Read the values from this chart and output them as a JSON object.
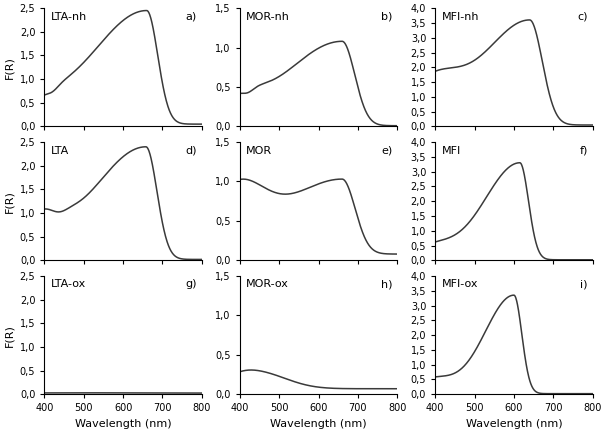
{
  "subplots": [
    {
      "label": "LTA-nh",
      "panel": "a)",
      "ylim": [
        0,
        2.5
      ],
      "yticks": [
        0.0,
        0.5,
        1.0,
        1.5,
        2.0,
        2.5
      ],
      "curve": "lta_nh"
    },
    {
      "label": "MOR-nh",
      "panel": "b)",
      "ylim": [
        0,
        1.5
      ],
      "yticks": [
        0.0,
        0.5,
        1.0,
        1.5
      ],
      "curve": "mor_nh"
    },
    {
      "label": "MFI-nh",
      "panel": "c)",
      "ylim": [
        0,
        4.0
      ],
      "yticks": [
        0.0,
        0.5,
        1.0,
        1.5,
        2.0,
        2.5,
        3.0,
        3.5,
        4.0
      ],
      "curve": "mfi_nh"
    },
    {
      "label": "LTA",
      "panel": "d)",
      "ylim": [
        0,
        2.5
      ],
      "yticks": [
        0.0,
        0.5,
        1.0,
        1.5,
        2.0,
        2.5
      ],
      "curve": "lta"
    },
    {
      "label": "MOR",
      "panel": "e)",
      "ylim": [
        0,
        1.5
      ],
      "yticks": [
        0.0,
        0.5,
        1.0,
        1.5
      ],
      "curve": "mor"
    },
    {
      "label": "MFI",
      "panel": "f)",
      "ylim": [
        0,
        4.0
      ],
      "yticks": [
        0.0,
        0.5,
        1.0,
        1.5,
        2.0,
        2.5,
        3.0,
        3.5,
        4.0
      ],
      "curve": "mfi"
    },
    {
      "label": "LTA-ox",
      "panel": "g)",
      "ylim": [
        0,
        2.5
      ],
      "yticks": [
        0.0,
        0.5,
        1.0,
        1.5,
        2.0,
        2.5
      ],
      "curve": "lta_ox"
    },
    {
      "label": "MOR-ox",
      "panel": "h)",
      "ylim": [
        0,
        1.5
      ],
      "yticks": [
        0.0,
        0.5,
        1.0,
        1.5
      ],
      "curve": "mor_ox"
    },
    {
      "label": "MFI-ox",
      "panel": "i)",
      "ylim": [
        0,
        4.0
      ],
      "yticks": [
        0.0,
        0.5,
        1.0,
        1.5,
        2.0,
        2.5,
        3.0,
        3.5,
        4.0
      ],
      "curve": "mfi_ox"
    }
  ],
  "xlim": [
    400,
    800
  ],
  "xticks": [
    400,
    500,
    600,
    700,
    800
  ],
  "xlabel": "Wavelength (nm)",
  "ylabel": "F(R)",
  "linecolor": "#3a3a3a",
  "linewidth": 1.1,
  "fontsize_label": 8,
  "fontsize_tick": 7,
  "fontsize_panel": 8,
  "fontsize_title": 8
}
